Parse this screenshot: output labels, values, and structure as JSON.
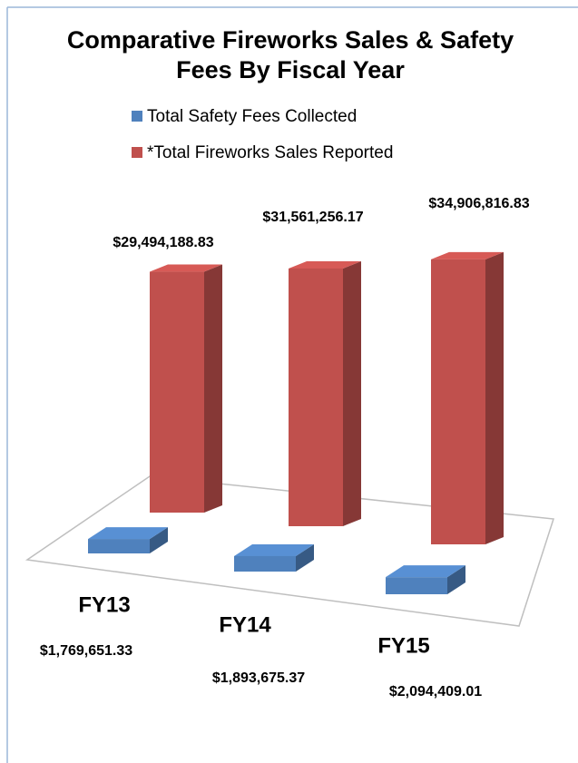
{
  "chart_data": {
    "type": "bar",
    "title": "Comparative Fireworks Sales & Safety Fees By Fiscal Year",
    "categories": [
      "FY13",
      "FY14",
      "FY15"
    ],
    "series": [
      {
        "name": "Total Safety Fees Collected",
        "color": "#4f81bd",
        "values": [
          1769651.33,
          1893675.37,
          2094409.01
        ],
        "value_labels": [
          "$1,769,651.33",
          "$1,893,675.37",
          "$2,094,409.01"
        ]
      },
      {
        "name": "*Total Fireworks Sales Reported",
        "color": "#c0504d",
        "values": [
          29494188.83,
          31561256.17,
          34906816.83
        ],
        "value_labels": [
          "$29,494,188.83",
          "$31,561,256.17",
          "$34,906,816.83"
        ]
      }
    ]
  }
}
